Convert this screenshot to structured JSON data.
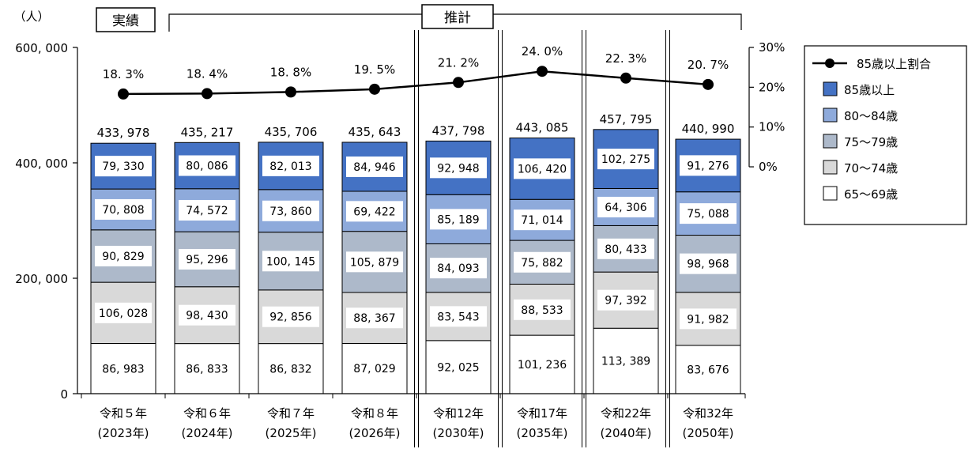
{
  "chart_data": {
    "type": "bar",
    "stacked": true,
    "unit_label": "（人）",
    "group_labels": {
      "actual": "実績",
      "projection": "推計"
    },
    "categories": [
      [
        "令和５年",
        "(2023年)"
      ],
      [
        "令和６年",
        "(2024年)"
      ],
      [
        "令和７年",
        "(2025年)"
      ],
      [
        "令和８年",
        "(2026年)"
      ],
      [
        "令和12年",
        "(2030年)"
      ],
      [
        "令和17年",
        "(2035年)"
      ],
      [
        "令和22年",
        "(2040年)"
      ],
      [
        "令和32年",
        "(2050年)"
      ]
    ],
    "series": [
      {
        "name": "65～69歳",
        "color": "#ffffff",
        "values": [
          86983,
          86833,
          86832,
          87029,
          92025,
          101236,
          113389,
          83676
        ]
      },
      {
        "name": "70～74歳",
        "color": "#d9d9d9",
        "values": [
          106028,
          98430,
          92856,
          88367,
          83543,
          88533,
          97392,
          91982
        ]
      },
      {
        "name": "75～79歳",
        "color": "#adb9ca",
        "values": [
          90829,
          95296,
          100145,
          105879,
          84093,
          75882,
          80433,
          98968
        ]
      },
      {
        "name": "80～84歳",
        "color": "#8eaadb",
        "values": [
          70808,
          74572,
          73860,
          69422,
          85189,
          71014,
          64306,
          75088
        ]
      },
      {
        "name": "85歳以上",
        "color": "#4472c4",
        "values": [
          79330,
          80086,
          82013,
          84946,
          92948,
          106420,
          102275,
          91276
        ]
      }
    ],
    "value_labels": [
      [
        "86, 983",
        "106, 028",
        "90, 829",
        "70, 808",
        "79, 330"
      ],
      [
        "86, 833",
        "98, 430",
        "95, 296",
        "74, 572",
        "80, 086"
      ],
      [
        "86, 832",
        "92, 856",
        "100, 145",
        "73, 860",
        "82, 013"
      ],
      [
        "87, 029",
        "88, 367",
        "105, 879",
        "69, 422",
        "84, 946"
      ],
      [
        "92, 025",
        "83, 543",
        "84, 093",
        "85, 189",
        "92, 948"
      ],
      [
        "101, 236",
        "88, 533",
        "75, 882",
        "71, 014",
        "106, 420"
      ],
      [
        "113, 389",
        "97, 392",
        "80, 433",
        "64, 306",
        "102, 275"
      ],
      [
        "83, 676",
        "91, 982",
        "98, 968",
        "75, 088",
        "91, 276"
      ]
    ],
    "totals": [
      433978,
      435217,
      435706,
      435643,
      437798,
      443085,
      457795,
      440990
    ],
    "total_labels": [
      "433, 978",
      "435, 217",
      "435, 706",
      "435, 643",
      "437, 798",
      "443, 085",
      "457, 795",
      "440, 990"
    ],
    "line_series": {
      "name": "85歳以上割合",
      "values": [
        18.3,
        18.4,
        18.8,
        19.5,
        21.2,
        24.0,
        22.3,
        20.7
      ],
      "labels": [
        "18. 3%",
        "18. 4%",
        "18. 8%",
        "19. 5%",
        "21. 2%",
        "24. 0%",
        "22. 3%",
        "20. 7%"
      ]
    },
    "y_left": {
      "range": [
        0,
        600000
      ],
      "ticks": [
        0,
        200000,
        400000,
        600000
      ],
      "tick_labels": [
        "0",
        "200, 000",
        "400, 000",
        "600, 000"
      ]
    },
    "y_right": {
      "range": [
        -57,
        30
      ],
      "ticks": [
        0,
        10,
        20,
        30
      ],
      "tick_labels": [
        "0%",
        "10%",
        "20%",
        "30%"
      ]
    },
    "legend": {
      "position": "top-right",
      "entries": [
        "85歳以上割合",
        "85歳以上",
        "80～84歳",
        "75～79歳",
        "70～74歳",
        "65～69歳"
      ]
    },
    "grid": false
  }
}
